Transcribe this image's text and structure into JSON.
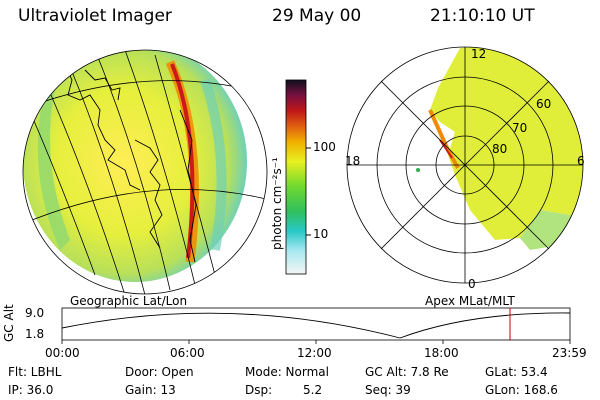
{
  "header": {
    "instrument": "Ultraviolet Imager",
    "date": "29 May 00",
    "time": "21:10:10 UT"
  },
  "colorbar": {
    "unit_label": "photon cm⁻²s⁻¹",
    "ticks": [
      "100",
      "10"
    ]
  },
  "polar_plot": {
    "mlt_labels": [
      "12",
      "18",
      "6",
      "0"
    ],
    "lat_labels": [
      "60",
      "70",
      "80"
    ]
  },
  "projection_labels": {
    "left": "Geographic Lat/Lon",
    "right": "Apex MLat/MLT"
  },
  "altitude_plot": {
    "axis_label": "GC Alt",
    "y_ticks": [
      "9.0",
      "1.8"
    ],
    "x_ticks": [
      "00:00",
      "06:00",
      "12:00",
      "18:00",
      "23:59"
    ],
    "current_marker_time": "21:10"
  },
  "info": {
    "filter": "Flt: LBHL",
    "ip": "IP: 36.0",
    "door": "Door: Open",
    "gain": "Gain: 13",
    "mode": "Mode: Normal",
    "dsp_label": "Dsp:",
    "dsp_value": "5.2",
    "gc_alt": "GC Alt: 7.8 Re",
    "seq": "Seq: 39",
    "glat": "GLat: 53.4",
    "glon": "GLon: 168.6"
  },
  "colors": {
    "background": "#ffffff",
    "grid": "#000000",
    "disk_fill": "#d7ec3c",
    "aurora_red": "#cc1a1a",
    "aurora_orange": "#f08a00",
    "marker_red": "#c00000"
  }
}
